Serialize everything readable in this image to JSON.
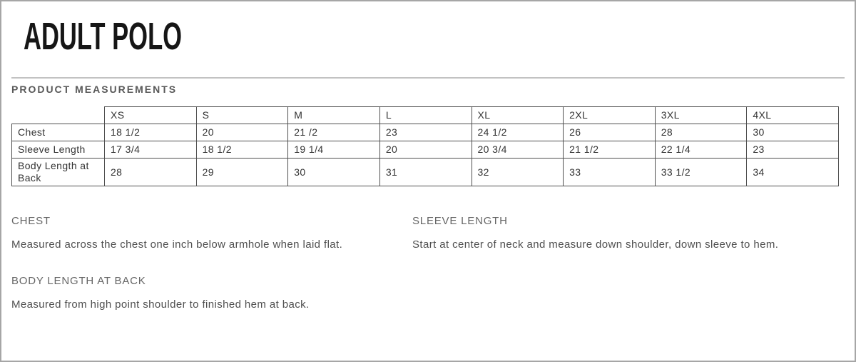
{
  "page": {
    "title": "ADULT POLO",
    "section_heading": "PRODUCT MEASUREMENTS"
  },
  "size_chart": {
    "sizes": [
      "XS",
      "S",
      "M",
      "L",
      "XL",
      "2XL",
      "3XL",
      "4XL"
    ],
    "rows": [
      {
        "label": "Chest",
        "values": [
          "18 1/2",
          "20",
          "21 /2",
          "23",
          "24 1/2",
          "26",
          "28",
          "30"
        ]
      },
      {
        "label": "Sleeve Length",
        "values": [
          "17 3/4",
          "18 1/2",
          "19 1/4",
          "20",
          "20 3/4",
          "21 1/2",
          "22 1/4",
          "23"
        ]
      },
      {
        "label": "Body Length at Back",
        "values": [
          "28",
          "29",
          "30",
          "31",
          "32",
          "33",
          "33 1/2",
          "34"
        ]
      }
    ]
  },
  "descriptions": [
    {
      "heading": "CHEST",
      "text": "Measured across the chest one inch below armhole when laid flat."
    },
    {
      "heading": "SLEEVE LENGTH",
      "text": "Start at center of neck and measure down shoulder, down sleeve to hem."
    },
    {
      "heading": "BODY LENGTH AT BACK",
      "text": "Measured from high point shoulder to finished hem at back."
    }
  ],
  "colors": {
    "page_border": "#a6a6a6",
    "divider": "#c2c2c2",
    "title_text": "#161616",
    "section_heading_text": "#595959",
    "table_border": "#4f4f4f",
    "table_text": "#333333",
    "description_heading_text": "#666666",
    "description_body_text": "#4f4f4f"
  }
}
